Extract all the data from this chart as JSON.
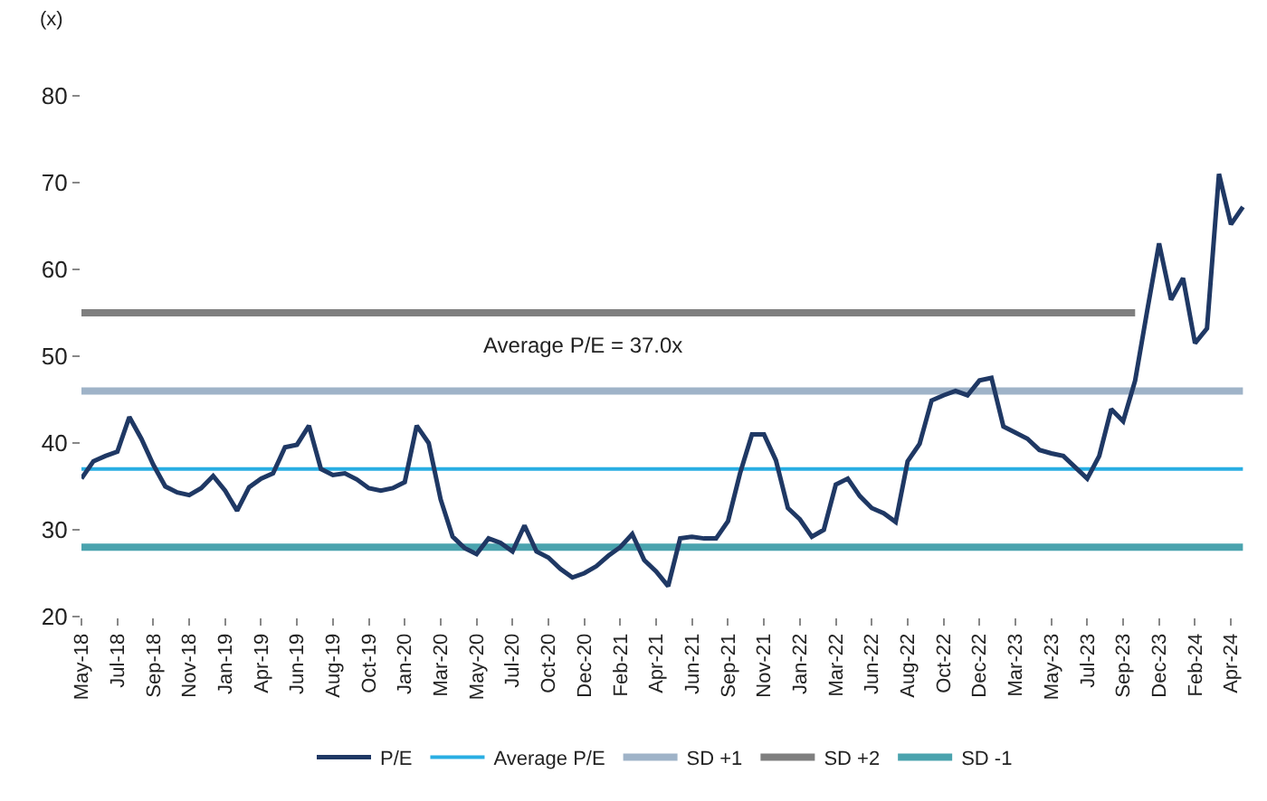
{
  "chart_data": {
    "type": "line",
    "ylabel": "(x)",
    "annotations": [
      "Average P/E = 37.0x"
    ],
    "categories": [
      "May-18",
      null,
      null,
      "Jul-18",
      null,
      null,
      "Sep-18",
      null,
      null,
      "Nov-18",
      null,
      null,
      "Jan-19",
      null,
      null,
      "Apr-19",
      null,
      null,
      "Jun-19",
      null,
      null,
      "Aug-19",
      null,
      null,
      "Oct-19",
      null,
      null,
      "Jan-20",
      null,
      null,
      "Mar-20",
      null,
      null,
      "May-20",
      null,
      null,
      "Jul-20",
      null,
      null,
      "Oct-20",
      null,
      null,
      "Dec-20",
      null,
      null,
      "Feb-21",
      null,
      null,
      "Apr-21",
      null,
      null,
      "Jun-21",
      null,
      null,
      "Sep-21",
      null,
      null,
      "Nov-21",
      null,
      null,
      "Jan-22",
      null,
      null,
      "Mar-22",
      null,
      null,
      "Jun-22",
      null,
      null,
      "Aug-22",
      null,
      null,
      "Oct-22",
      null,
      null,
      "Dec-22",
      null,
      null,
      "Mar-23",
      null,
      null,
      "May-23",
      null,
      null,
      "Jul-23",
      null,
      null,
      "Sep-23",
      null,
      null,
      "Dec-23",
      null,
      null,
      "Feb-24",
      null,
      null,
      "Apr-24",
      null
    ],
    "series": [
      {
        "name": "P/E",
        "color": "#1f3864",
        "values": [
          35.9,
          37.9,
          38.5,
          39.0,
          43.0,
          40.5,
          37.5,
          35.0,
          34.3,
          34.0,
          34.8,
          36.2,
          34.5,
          32.2,
          34.9,
          35.9,
          36.5,
          39.5,
          39.8,
          42.0,
          37.0,
          36.3,
          36.5,
          35.8,
          34.8,
          34.5,
          34.8,
          35.5,
          42.0,
          40.0,
          33.5,
          29.2,
          27.9,
          27.2,
          29.0,
          28.5,
          27.5,
          30.5,
          27.5,
          26.8,
          25.5,
          24.5,
          25.0,
          25.8,
          27.0,
          28.0,
          29.5,
          26.5,
          25.2,
          23.5,
          29.0,
          29.2,
          29.0,
          29.0,
          31.0,
          36.5,
          41.0,
          41.0,
          38.0,
          32.5,
          31.2,
          29.2,
          30.0,
          35.2,
          35.9,
          33.9,
          32.5,
          31.9,
          30.9,
          37.9,
          39.9,
          44.9,
          45.5,
          46.0,
          45.5,
          47.2,
          47.5,
          41.9,
          41.2,
          40.5,
          39.2,
          38.8,
          38.5,
          37.2,
          35.9,
          38.5,
          43.9,
          42.5,
          47.2,
          55.2,
          63.0,
          56.5,
          59.0,
          51.5,
          53.2,
          71.0,
          65.2,
          67.2
        ]
      },
      {
        "name": "Average P/E",
        "color": "#29aee3",
        "values": [
          37,
          37,
          37,
          37,
          37,
          37,
          37,
          37,
          37,
          37,
          37,
          37,
          37,
          37,
          37,
          37,
          37,
          37,
          37,
          37,
          37,
          37,
          37,
          37,
          37,
          37,
          37,
          37,
          37,
          37,
          37,
          37,
          37,
          37,
          37,
          37,
          37,
          37,
          37,
          37,
          37,
          37,
          37,
          37,
          37,
          37,
          37,
          37,
          37,
          37,
          37,
          37,
          37,
          37,
          37,
          37,
          37,
          37,
          37,
          37,
          37,
          37,
          37,
          37,
          37,
          37,
          37,
          37,
          37,
          37,
          37,
          37,
          37,
          37,
          37,
          37,
          37,
          37,
          37,
          37,
          37,
          37,
          37,
          37,
          37,
          37,
          37,
          37,
          37,
          37,
          37,
          37,
          37,
          37,
          37,
          37,
          37,
          37
        ]
      },
      {
        "name": "SD +1",
        "color": "#9fb3c8",
        "values": [
          46,
          46,
          46,
          46,
          46,
          46,
          46,
          46,
          46,
          46,
          46,
          46,
          46,
          46,
          46,
          46,
          46,
          46,
          46,
          46,
          46,
          46,
          46,
          46,
          46,
          46,
          46,
          46,
          46,
          46,
          46,
          46,
          46,
          46,
          46,
          46,
          46,
          46,
          46,
          46,
          46,
          46,
          46,
          46,
          46,
          46,
          46,
          46,
          46,
          46,
          46,
          46,
          46,
          46,
          46,
          46,
          46,
          46,
          46,
          46,
          46,
          46,
          46,
          46,
          46,
          46,
          46,
          46,
          46,
          46,
          46,
          46,
          46,
          46,
          46,
          46,
          46,
          46,
          46,
          46,
          46,
          46,
          46,
          46,
          46,
          46,
          46,
          46,
          46,
          46,
          46,
          46,
          46,
          46,
          46,
          46,
          46,
          46
        ]
      },
      {
        "name": "SD +2",
        "color": "#7f7f7f",
        "values": [
          55,
          55,
          55,
          55,
          55,
          55,
          55,
          55,
          55,
          55,
          55,
          55,
          55,
          55,
          55,
          55,
          55,
          55,
          55,
          55,
          55,
          55,
          55,
          55,
          55,
          55,
          55,
          55,
          55,
          55,
          55,
          55,
          55,
          55,
          55,
          55,
          55,
          55,
          55,
          55,
          55,
          55,
          55,
          55,
          55,
          55,
          55,
          55,
          55,
          55,
          55,
          55,
          55,
          55,
          55,
          55,
          55,
          55,
          55,
          55,
          55,
          55,
          55,
          55,
          55,
          55,
          55,
          55,
          55,
          55,
          55,
          55,
          55,
          55,
          55,
          55,
          55,
          55,
          55,
          55,
          55,
          55,
          55,
          55,
          55,
          55,
          55,
          55,
          55,
          null,
          null,
          null,
          null,
          null,
          null,
          null,
          null,
          null
        ]
      },
      {
        "name": "SD -1",
        "color": "#4aa3ae",
        "values": [
          28,
          28,
          28,
          28,
          28,
          28,
          28,
          28,
          28,
          28,
          28,
          28,
          28,
          28,
          28,
          28,
          28,
          28,
          28,
          28,
          28,
          28,
          28,
          28,
          28,
          28,
          28,
          28,
          28,
          28,
          28,
          28,
          28,
          28,
          28,
          28,
          28,
          28,
          28,
          28,
          28,
          28,
          28,
          28,
          28,
          28,
          28,
          28,
          28,
          28,
          28,
          28,
          28,
          28,
          28,
          28,
          28,
          28,
          28,
          28,
          28,
          28,
          28,
          28,
          28,
          28,
          28,
          28,
          28,
          28,
          28,
          28,
          28,
          28,
          28,
          28,
          28,
          28,
          28,
          28,
          28,
          28,
          28,
          28,
          28,
          28,
          28,
          28,
          28,
          28,
          28,
          28,
          28,
          28,
          28,
          28,
          28,
          28
        ]
      }
    ],
    "ylim": [
      20,
      80
    ],
    "yticks": [
      20,
      30,
      40,
      50,
      60,
      70,
      80
    ],
    "legend": "bottom"
  }
}
